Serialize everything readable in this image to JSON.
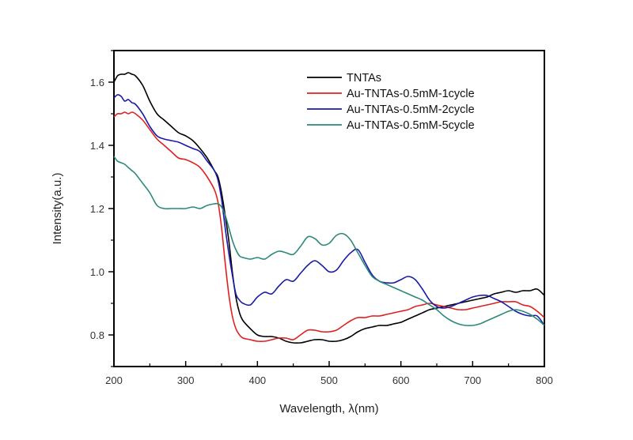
{
  "chart_data": {
    "type": "line",
    "title": "",
    "xlabel": "Wavelength,  λ(nm)",
    "ylabel": "Intensity(a.u.)",
    "xlim": [
      200,
      800
    ],
    "ylim": [
      0.7,
      1.7
    ],
    "xticks": [
      200,
      300,
      400,
      500,
      600,
      700,
      800
    ],
    "xtick_labels": [
      "200",
      "300",
      "400",
      "500",
      "600",
      "700",
      "800"
    ],
    "xminor": [
      250,
      350,
      450,
      550,
      650,
      750
    ],
    "yticks": [
      0.8,
      1.0,
      1.2,
      1.4,
      1.6
    ],
    "ytick_labels": [
      "0.8",
      "1.0",
      "1.2",
      "1.4",
      "1.6"
    ],
    "yminor": [
      0.7,
      0.9,
      1.1,
      1.3,
      1.5,
      1.7
    ],
    "grid": false,
    "legend_position": "top-right",
    "series": [
      {
        "name": "TNTAs",
        "color": "#000000",
        "x": [
          200,
          205,
          210,
          215,
          220,
          225,
          230,
          240,
          250,
          260,
          270,
          280,
          290,
          300,
          310,
          320,
          330,
          340,
          345,
          350,
          355,
          360,
          365,
          370,
          375,
          380,
          390,
          400,
          410,
          420,
          430,
          440,
          450,
          460,
          470,
          480,
          490,
          500,
          510,
          520,
          530,
          540,
          550,
          560,
          570,
          580,
          590,
          600,
          610,
          620,
          630,
          640,
          650,
          660,
          670,
          680,
          690,
          700,
          710,
          720,
          730,
          740,
          750,
          760,
          770,
          780,
          790,
          800
        ],
        "y": [
          1.6,
          1.62,
          1.625,
          1.625,
          1.63,
          1.625,
          1.62,
          1.59,
          1.54,
          1.5,
          1.48,
          1.46,
          1.44,
          1.43,
          1.415,
          1.39,
          1.36,
          1.32,
          1.3,
          1.25,
          1.18,
          1.1,
          1.0,
          0.92,
          0.87,
          0.845,
          0.82,
          0.8,
          0.795,
          0.795,
          0.79,
          0.78,
          0.775,
          0.775,
          0.78,
          0.785,
          0.785,
          0.78,
          0.78,
          0.785,
          0.795,
          0.81,
          0.82,
          0.825,
          0.83,
          0.83,
          0.835,
          0.84,
          0.85,
          0.86,
          0.87,
          0.88,
          0.885,
          0.89,
          0.895,
          0.9,
          0.905,
          0.91,
          0.915,
          0.92,
          0.93,
          0.935,
          0.94,
          0.935,
          0.94,
          0.94,
          0.945,
          0.925
        ]
      },
      {
        "name": "Au-TNTAs-0.5mM-1cycle",
        "color": "#e02020",
        "x": [
          200,
          205,
          210,
          215,
          220,
          225,
          230,
          240,
          250,
          260,
          270,
          280,
          290,
          300,
          310,
          320,
          330,
          340,
          345,
          350,
          355,
          360,
          365,
          370,
          375,
          380,
          390,
          400,
          410,
          420,
          430,
          440,
          450,
          460,
          470,
          480,
          490,
          500,
          510,
          520,
          530,
          540,
          550,
          560,
          570,
          580,
          590,
          600,
          610,
          620,
          630,
          640,
          650,
          660,
          670,
          680,
          690,
          700,
          710,
          720,
          730,
          740,
          750,
          760,
          770,
          780,
          790,
          800
        ],
        "y": [
          1.49,
          1.5,
          1.5,
          1.505,
          1.5,
          1.505,
          1.5,
          1.48,
          1.45,
          1.42,
          1.4,
          1.38,
          1.36,
          1.355,
          1.345,
          1.33,
          1.3,
          1.26,
          1.22,
          1.14,
          1.03,
          0.93,
          0.86,
          0.82,
          0.8,
          0.79,
          0.785,
          0.78,
          0.78,
          0.785,
          0.79,
          0.79,
          0.785,
          0.8,
          0.815,
          0.815,
          0.81,
          0.81,
          0.815,
          0.83,
          0.845,
          0.855,
          0.855,
          0.86,
          0.86,
          0.865,
          0.87,
          0.875,
          0.88,
          0.89,
          0.895,
          0.9,
          0.895,
          0.89,
          0.885,
          0.88,
          0.88,
          0.885,
          0.89,
          0.895,
          0.9,
          0.905,
          0.905,
          0.905,
          0.895,
          0.89,
          0.875,
          0.855
        ]
      },
      {
        "name": "Au-TNTAs-0.5mM-2cycle",
        "color": "#1a1aaa",
        "x": [
          200,
          205,
          210,
          215,
          220,
          225,
          230,
          240,
          250,
          260,
          270,
          280,
          290,
          300,
          310,
          320,
          330,
          340,
          345,
          350,
          355,
          360,
          365,
          370,
          375,
          380,
          390,
          400,
          410,
          420,
          430,
          440,
          450,
          460,
          470,
          480,
          490,
          500,
          510,
          520,
          530,
          540,
          550,
          560,
          570,
          580,
          590,
          600,
          610,
          620,
          630,
          640,
          650,
          660,
          670,
          680,
          690,
          700,
          710,
          720,
          730,
          740,
          750,
          760,
          770,
          780,
          790,
          800
        ],
        "y": [
          1.55,
          1.56,
          1.555,
          1.54,
          1.545,
          1.535,
          1.53,
          1.5,
          1.46,
          1.43,
          1.42,
          1.415,
          1.41,
          1.4,
          1.39,
          1.38,
          1.35,
          1.32,
          1.29,
          1.23,
          1.14,
          1.06,
          0.99,
          0.93,
          0.91,
          0.9,
          0.895,
          0.92,
          0.935,
          0.93,
          0.955,
          0.975,
          0.97,
          0.995,
          1.02,
          1.035,
          1.02,
          1.0,
          1.005,
          1.035,
          1.06,
          1.07,
          1.03,
          0.99,
          0.97,
          0.965,
          0.965,
          0.975,
          0.985,
          0.975,
          0.945,
          0.91,
          0.89,
          0.885,
          0.89,
          0.9,
          0.91,
          0.92,
          0.925,
          0.925,
          0.915,
          0.905,
          0.89,
          0.875,
          0.865,
          0.86,
          0.86,
          0.83
        ]
      },
      {
        "name": "Au-TNTAs-0.5mM-5cycle",
        "color": "#2a8a7a",
        "x": [
          200,
          205,
          210,
          215,
          220,
          225,
          230,
          240,
          250,
          260,
          270,
          280,
          290,
          300,
          310,
          320,
          330,
          340,
          345,
          350,
          355,
          360,
          365,
          370,
          375,
          380,
          390,
          400,
          410,
          420,
          430,
          440,
          450,
          460,
          470,
          480,
          490,
          500,
          510,
          520,
          530,
          540,
          550,
          560,
          570,
          580,
          590,
          600,
          610,
          620,
          630,
          640,
          650,
          660,
          670,
          680,
          690,
          700,
          710,
          720,
          730,
          740,
          750,
          760,
          770,
          780,
          790,
          800
        ],
        "y": [
          1.365,
          1.35,
          1.345,
          1.34,
          1.33,
          1.32,
          1.31,
          1.28,
          1.25,
          1.21,
          1.2,
          1.2,
          1.2,
          1.2,
          1.205,
          1.2,
          1.21,
          1.215,
          1.215,
          1.205,
          1.18,
          1.14,
          1.1,
          1.07,
          1.05,
          1.045,
          1.04,
          1.045,
          1.04,
          1.055,
          1.065,
          1.06,
          1.055,
          1.08,
          1.11,
          1.105,
          1.085,
          1.09,
          1.115,
          1.12,
          1.1,
          1.06,
          1.02,
          0.985,
          0.97,
          0.96,
          0.95,
          0.94,
          0.93,
          0.92,
          0.91,
          0.895,
          0.88,
          0.86,
          0.845,
          0.835,
          0.83,
          0.83,
          0.835,
          0.845,
          0.855,
          0.865,
          0.875,
          0.88,
          0.875,
          0.865,
          0.85,
          0.83
        ]
      }
    ]
  }
}
